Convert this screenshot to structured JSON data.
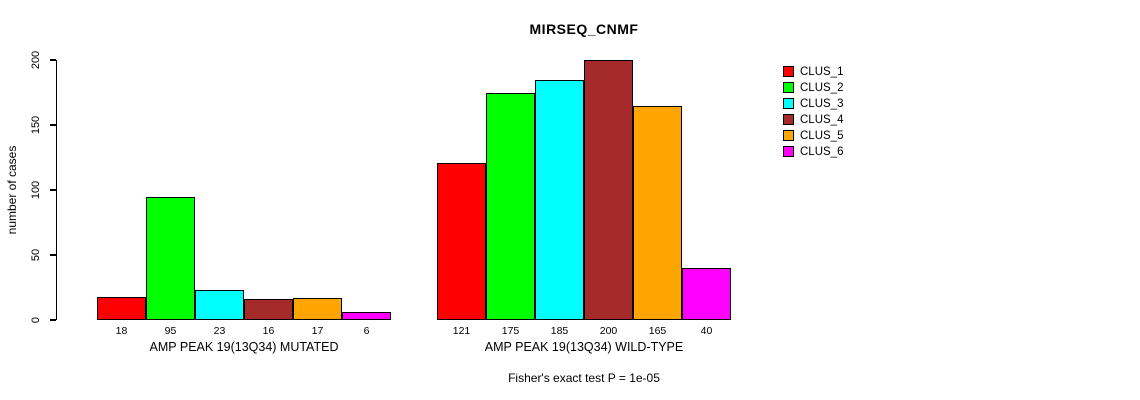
{
  "chart_data": {
    "type": "bar",
    "title": "MIRSEQ_CNMF",
    "ylabel": "number of cases",
    "ylim": [
      0,
      200
    ],
    "yticks": [
      0,
      50,
      100,
      150,
      200
    ],
    "grid": false,
    "legend_position": "right",
    "categories": [
      "CLUS_1",
      "CLUS_2",
      "CLUS_3",
      "CLUS_4",
      "CLUS_5",
      "CLUS_6"
    ],
    "series_colors": [
      "#FF0000",
      "#00FF00",
      "#00FFFF",
      "#A52A2A",
      "#FFA500",
      "#FF00FF"
    ],
    "groups": [
      {
        "label": "AMP PEAK 19(13Q34) MUTATED",
        "values": [
          18,
          95,
          23,
          16,
          17,
          6
        ]
      },
      {
        "label": "AMP PEAK 19(13Q34) WILD-TYPE",
        "values": [
          121,
          175,
          185,
          200,
          165,
          40
        ]
      }
    ],
    "legend": [
      "CLUS_1",
      "CLUS_2",
      "CLUS_3",
      "CLUS_4",
      "CLUS_5",
      "CLUS_6"
    ],
    "note": "Fisher's exact test P = 1e-05"
  }
}
